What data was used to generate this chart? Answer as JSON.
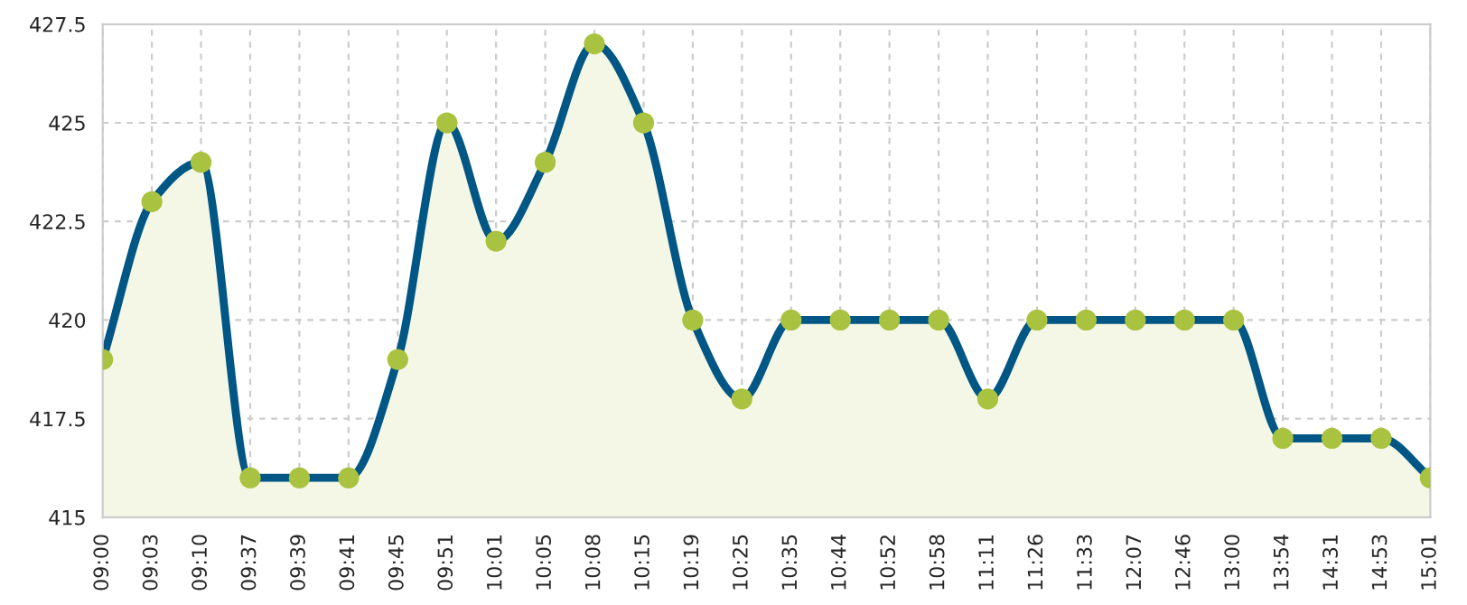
{
  "chart_data": {
    "type": "area",
    "categories": [
      "09:00",
      "09:03",
      "09:10",
      "09:37",
      "09:39",
      "09:41",
      "09:45",
      "09:51",
      "10:01",
      "10:05",
      "10:08",
      "10:15",
      "10:19",
      "10:25",
      "10:35",
      "10:44",
      "10:52",
      "10:58",
      "11:11",
      "11:26",
      "11:33",
      "12:07",
      "12:46",
      "13:00",
      "13:54",
      "14:31",
      "14:53",
      "15:01"
    ],
    "series": [
      {
        "color": "#005684",
        "values": [
          419,
          423,
          424,
          416,
          416,
          416,
          419,
          425,
          422,
          424,
          427,
          425,
          420,
          418,
          420,
          420,
          420,
          420,
          418,
          420,
          420,
          420,
          420,
          420,
          417,
          417,
          417,
          416
        ]
      }
    ],
    "ylim": [
      415,
      427.5
    ],
    "yticks": [
      415,
      417.5,
      420,
      422.5,
      425,
      427.5
    ],
    "grid": true,
    "marker": "circle",
    "legend": false
  }
}
